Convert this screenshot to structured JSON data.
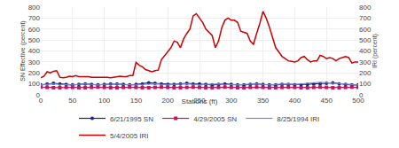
{
  "chart_data": {
    "type": "line",
    "xlabel": "Stations (ft)",
    "ylabel": "SN Effective (percent)",
    "y2label": "IRI (percent)",
    "xlim": [
      0,
      500
    ],
    "xticks": [
      0,
      50,
      100,
      150,
      200,
      250,
      300,
      350,
      400,
      450,
      500
    ],
    "ylim": [
      0,
      800
    ],
    "yticks": [
      0,
      100,
      200,
      300,
      400,
      500,
      600,
      700,
      800
    ],
    "y2lim": [
      0,
      800
    ],
    "y2ticks": [
      0,
      100,
      200,
      300,
      400,
      500,
      600,
      700,
      800
    ],
    "grid": true,
    "legend": "bottom",
    "series": [
      {
        "name": "6/21/1995 SN",
        "color": "#1a237e",
        "marker": "circle",
        "x": [
          0,
          10,
          20,
          30,
          40,
          50,
          60,
          70,
          80,
          90,
          100,
          110,
          120,
          130,
          140,
          150,
          160,
          170,
          180,
          190,
          200,
          210,
          220,
          230,
          240,
          250,
          260,
          270,
          280,
          290,
          300,
          310,
          320,
          330,
          340,
          350,
          360,
          370,
          380,
          390,
          400,
          410,
          420,
          430,
          440,
          450,
          460,
          470,
          480,
          490,
          500
        ],
        "values": [
          90,
          100,
          105,
          100,
          95,
          90,
          95,
          100,
          95,
          90,
          95,
          100,
          100,
          95,
          90,
          95,
          100,
          110,
          105,
          100,
          95,
          95,
          100,
          105,
          100,
          100,
          95,
          90,
          95,
          100,
          95,
          90,
          90,
          95,
          100,
          95,
          90,
          90,
          95,
          95,
          90,
          90,
          95,
          100,
          100,
          105,
          110,
          100,
          95,
          90,
          90
        ]
      },
      {
        "name": "4/29/2005 SN",
        "color": "#c2185b",
        "marker": "square",
        "x": [
          0,
          10,
          20,
          30,
          40,
          50,
          60,
          70,
          80,
          90,
          100,
          110,
          120,
          130,
          140,
          150,
          160,
          170,
          180,
          190,
          200,
          210,
          220,
          230,
          240,
          250,
          260,
          270,
          280,
          290,
          300,
          310,
          320,
          330,
          340,
          350,
          360,
          370,
          380,
          390,
          400,
          410,
          420,
          430,
          440,
          450,
          460,
          470,
          480,
          490,
          500
        ],
        "values": [
          70,
          68,
          65,
          65,
          68,
          68,
          65,
          65,
          68,
          70,
          68,
          65,
          65,
          68,
          70,
          68,
          65,
          65,
          68,
          70,
          68,
          65,
          65,
          68,
          70,
          68,
          65,
          65,
          68,
          70,
          68,
          65,
          65,
          68,
          70,
          68,
          65,
          65,
          68,
          70,
          68,
          65,
          65,
          68,
          70,
          68,
          65,
          65,
          68,
          70,
          68
        ]
      },
      {
        "name": "8/25/1994 IRI",
        "color": "#7986cb",
        "x": [
          0,
          10,
          20,
          30,
          40,
          50,
          60,
          70,
          80,
          90,
          100,
          110,
          120,
          130,
          140,
          150,
          160,
          170,
          180,
          190,
          200,
          210,
          220,
          230,
          240,
          250,
          260,
          270,
          280,
          290,
          300,
          310,
          320,
          330,
          340,
          350,
          360,
          370,
          380,
          390,
          400,
          410,
          420,
          430,
          440,
          450,
          460,
          470,
          480,
          490,
          500
        ],
        "values": [
          90,
          95,
          100,
          95,
          90,
          90,
          95,
          100,
          95,
          90,
          95,
          100,
          100,
          95,
          90,
          90,
          95,
          100,
          100,
          95,
          90,
          95,
          100,
          100,
          95,
          90,
          95,
          100,
          100,
          95,
          90,
          90,
          95,
          100,
          100,
          95,
          90,
          95,
          100,
          100,
          95,
          100,
          105,
          110,
          115,
          110,
          105,
          100,
          100,
          95,
          90
        ]
      },
      {
        "name": "5/4/2005 IRI",
        "color": "#cc0000",
        "axis": "y2",
        "x": [
          0,
          5,
          10,
          15,
          20,
          25,
          30,
          35,
          40,
          45,
          50,
          55,
          60,
          65,
          70,
          75,
          80,
          85,
          90,
          95,
          100,
          105,
          110,
          115,
          120,
          125,
          130,
          135,
          140,
          145,
          150,
          155,
          160,
          165,
          170,
          175,
          180,
          185,
          190,
          195,
          200,
          205,
          210,
          215,
          220,
          225,
          230,
          235,
          240,
          245,
          250,
          255,
          260,
          265,
          270,
          275,
          280,
          285,
          290,
          295,
          300,
          305,
          310,
          315,
          320,
          325,
          330,
          335,
          340,
          345,
          350,
          355,
          360,
          365,
          370,
          375,
          380,
          385,
          390,
          395,
          400,
          405,
          410,
          415,
          420,
          425,
          430,
          435,
          440,
          445,
          450,
          455,
          460,
          465,
          470,
          475,
          480,
          485,
          490,
          495,
          500
        ],
        "values": [
          155,
          170,
          210,
          200,
          215,
          220,
          160,
          155,
          160,
          170,
          165,
          175,
          165,
          165,
          170,
          165,
          160,
          160,
          165,
          165,
          165,
          160,
          155,
          160,
          165,
          170,
          165,
          165,
          175,
          175,
          295,
          270,
          255,
          230,
          220,
          210,
          220,
          225,
          320,
          360,
          390,
          430,
          490,
          480,
          430,
          510,
          560,
          600,
          720,
          740,
          700,
          660,
          600,
          570,
          540,
          430,
          490,
          610,
          680,
          700,
          680,
          680,
          660,
          580,
          570,
          560,
          490,
          460,
          560,
          650,
          760,
          700,
          620,
          520,
          430,
          390,
          350,
          330,
          310,
          305,
          300,
          310,
          340,
          350,
          320,
          300,
          310,
          310,
          360,
          350,
          330,
          340,
          330,
          310,
          330,
          340,
          350,
          340,
          290,
          300,
          300
        ]
      }
    ]
  }
}
